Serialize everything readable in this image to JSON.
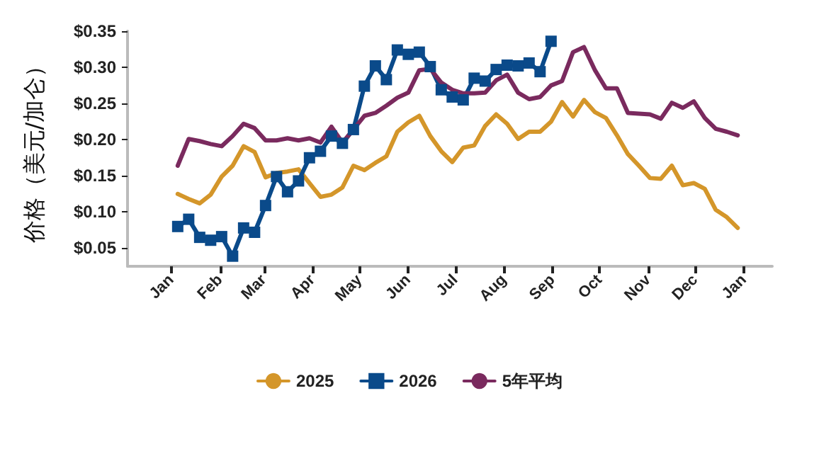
{
  "chart_data": {
    "type": "line",
    "ylabel": "价格（美元/加仑）",
    "x": [
      "2026-01-05",
      "2026-01-12",
      "2026-01-19",
      "2026-01-26",
      "2026-02-02",
      "2026-02-09",
      "2026-02-16",
      "2026-02-23",
      "2026-03-02",
      "2026-03-09",
      "2026-03-16",
      "2026-03-23",
      "2026-03-30",
      "2026-04-06",
      "2026-04-13",
      "2026-04-20",
      "2026-04-27",
      "2026-05-04",
      "2026-05-11",
      "2026-05-18",
      "2026-05-25",
      "2026-06-01",
      "2026-06-08",
      "2026-06-15",
      "2026-06-22",
      "2026-06-29",
      "2026-07-06",
      "2026-07-13",
      "2026-07-20",
      "2026-07-27",
      "2026-08-03",
      "2026-08-10",
      "2026-08-17",
      "2026-08-24",
      "2026-08-31",
      "2026-09-07",
      "2026-09-14",
      "2026-09-21",
      "2026-09-28",
      "2026-10-05",
      "2026-10-12",
      "2026-10-19",
      "2026-10-26",
      "2026-11-02",
      "2026-11-09",
      "2026-11-16",
      "2026-11-23",
      "2026-11-30",
      "2026-12-07",
      "2026-12-14",
      "2026-12-21",
      "2026-12-28"
    ],
    "series": [
      {
        "name": "2025",
        "color": "#d4962a",
        "marker": "none",
        "values": [
          0.125,
          0.118,
          0.112,
          0.124,
          0.149,
          0.164,
          0.191,
          0.183,
          0.148,
          0.154,
          0.156,
          0.159,
          0.14,
          0.121,
          0.124,
          0.134,
          0.164,
          0.158,
          0.168,
          0.177,
          0.211,
          0.224,
          0.233,
          0.205,
          0.184,
          0.169,
          0.189,
          0.192,
          0.219,
          0.235,
          0.222,
          0.201,
          0.211,
          0.211,
          0.225,
          0.252,
          0.232,
          0.255,
          0.238,
          0.23,
          0.206,
          0.18,
          0.164,
          0.147,
          0.146,
          0.164,
          0.137,
          0.14,
          0.132,
          0.103,
          0.093,
          0.078
        ]
      },
      {
        "name": "2026",
        "color": "#0a4a8a",
        "marker": "square",
        "values": [
          0.08,
          0.09,
          0.065,
          0.061,
          0.066,
          0.039,
          0.078,
          0.072,
          0.109,
          0.149,
          0.128,
          0.143,
          0.175,
          0.184,
          0.205,
          0.195,
          0.214,
          0.274,
          0.302,
          0.283,
          0.324,
          0.318,
          0.321,
          0.301,
          0.269,
          0.259,
          0.255,
          0.285,
          0.281,
          0.297,
          0.303,
          0.302,
          0.306,
          0.294,
          0.336,
          null,
          null,
          null,
          null,
          null,
          null,
          null,
          null,
          null,
          null,
          null,
          null,
          null,
          null,
          null,
          null,
          null
        ]
      },
      {
        "name": "5年平均",
        "color": "#7a2a5e",
        "marker": "none",
        "values": [
          0.164,
          0.201,
          0.198,
          0.194,
          0.191,
          0.205,
          0.222,
          0.216,
          0.199,
          0.199,
          0.202,
          0.199,
          0.202,
          0.196,
          0.218,
          0.196,
          0.214,
          0.233,
          0.237,
          0.247,
          0.258,
          0.265,
          0.296,
          0.298,
          0.279,
          0.269,
          0.264,
          0.264,
          0.265,
          0.282,
          0.29,
          0.265,
          0.256,
          0.259,
          0.275,
          0.281,
          0.321,
          0.328,
          0.296,
          0.271,
          0.271,
          0.237,
          0.236,
          0.235,
          0.229,
          0.251,
          0.244,
          0.253,
          0.23,
          0.215,
          0.211,
          0.206
        ]
      }
    ],
    "xlim": [
      "2025-12-04",
      "2027-01-19"
    ],
    "xticks": [
      {
        "value": "2026-01-01",
        "label": "Jan"
      },
      {
        "value": "2026-02-01",
        "label": "Feb"
      },
      {
        "value": "2026-03-01",
        "label": "Mar"
      },
      {
        "value": "2026-04-01",
        "label": "Apr"
      },
      {
        "value": "2026-05-01",
        "label": "May"
      },
      {
        "value": "2026-06-01",
        "label": "Jun"
      },
      {
        "value": "2026-07-01",
        "label": "Jul"
      },
      {
        "value": "2026-08-01",
        "label": "Aug"
      },
      {
        "value": "2026-09-01",
        "label": "Sep"
      },
      {
        "value": "2026-10-01",
        "label": "Oct"
      },
      {
        "value": "2026-11-01",
        "label": "Nov"
      },
      {
        "value": "2026-12-01",
        "label": "Dec"
      },
      {
        "value": "2027-01-01",
        "label": "Jan"
      }
    ],
    "ylim": [
      0.025,
      0.35
    ],
    "yticks": [
      {
        "value": 0.05,
        "label": "$0.05"
      },
      {
        "value": 0.1,
        "label": "$0.10"
      },
      {
        "value": 0.15,
        "label": "$0.15"
      },
      {
        "value": 0.2,
        "label": "$0.20"
      },
      {
        "value": 0.25,
        "label": "$0.25"
      },
      {
        "value": 0.3,
        "label": "$0.30"
      },
      {
        "value": 0.35,
        "label": "$0.35"
      }
    ],
    "grid": false,
    "legend": "bottom",
    "line_style": "solid"
  }
}
